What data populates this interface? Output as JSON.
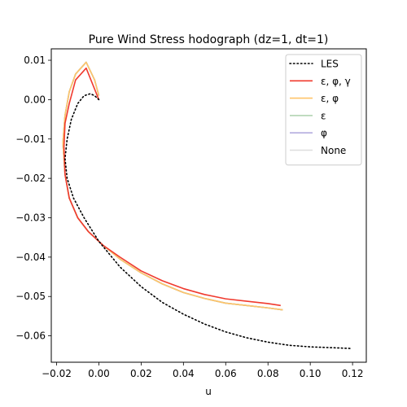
{
  "chart_data": {
    "type": "line",
    "title": "Pure Wind Stress hodograph (dz=1, dt=1)",
    "xlabel": "u",
    "ylabel": "",
    "xlim": [
      -0.0225,
      0.1265
    ],
    "ylim": [
      -0.0667,
      0.0129
    ],
    "xticks": [
      -0.02,
      0.0,
      0.02,
      0.04,
      0.06,
      0.08,
      0.1,
      0.12
    ],
    "xtick_labels": [
      "−0.02",
      "0.00",
      "0.02",
      "0.04",
      "0.06",
      "0.08",
      "0.10",
      "0.12"
    ],
    "yticks": [
      0.01,
      0.0,
      -0.01,
      -0.02,
      -0.03,
      -0.04,
      -0.05,
      -0.06
    ],
    "ytick_labels": [
      "0.01",
      "0.00",
      "−0.01",
      "−0.02",
      "−0.03",
      "−0.04",
      "−0.05",
      "−0.06"
    ],
    "grid": false,
    "legend_position": "top-right",
    "series": [
      {
        "name": "LES",
        "color": "#000000",
        "dash": "dotted",
        "x": [
          0.0,
          -0.002,
          -0.004,
          -0.007,
          -0.01,
          -0.013,
          -0.015,
          -0.016,
          -0.015,
          -0.012,
          -0.007,
          0.0,
          0.01,
          0.02,
          0.03,
          0.04,
          0.05,
          0.06,
          0.07,
          0.08,
          0.09,
          0.1,
          0.11,
          0.119
        ],
        "y": [
          0.0,
          0.001,
          0.0015,
          0.001,
          -0.001,
          -0.005,
          -0.01,
          -0.015,
          -0.02,
          -0.025,
          -0.03,
          -0.036,
          -0.0425,
          -0.0475,
          -0.0515,
          -0.0545,
          -0.057,
          -0.059,
          -0.0605,
          -0.0616,
          -0.0624,
          -0.0628,
          -0.063,
          -0.0632
        ]
      },
      {
        "name": "ε, φ, γ",
        "color": "#f03a2e",
        "dash": "solid",
        "x": [
          0.0,
          -0.003,
          -0.006,
          -0.011,
          -0.014,
          -0.016,
          -0.0165,
          -0.016,
          -0.014,
          -0.01,
          -0.005,
          0.002,
          0.01,
          0.02,
          0.03,
          0.04,
          0.05,
          0.06,
          0.07,
          0.08,
          0.086
        ],
        "y": [
          0.0,
          0.004,
          0.008,
          0.005,
          -0.001,
          -0.006,
          -0.012,
          -0.019,
          -0.025,
          -0.03,
          -0.0335,
          -0.037,
          -0.04,
          -0.0435,
          -0.046,
          -0.048,
          -0.0495,
          -0.0506,
          -0.0512,
          -0.0518,
          -0.0523
        ]
      },
      {
        "name": "ε, φ",
        "color": "#ffc469",
        "dash": "solid",
        "x": [
          0.0,
          -0.002,
          -0.006,
          -0.011,
          -0.014,
          -0.016,
          -0.017,
          -0.016,
          -0.014,
          -0.01,
          -0.005,
          0.002,
          0.01,
          0.02,
          0.03,
          0.04,
          0.05,
          0.06,
          0.07,
          0.08,
          0.087
        ],
        "y": [
          0.001,
          0.005,
          0.0095,
          0.0065,
          0.002,
          -0.004,
          -0.011,
          -0.019,
          -0.025,
          -0.03,
          -0.0335,
          -0.037,
          -0.0405,
          -0.044,
          -0.0468,
          -0.049,
          -0.0505,
          -0.0517,
          -0.0523,
          -0.0529,
          -0.0534
        ]
      },
      {
        "name": "ε",
        "color": "#b2d4b2",
        "dash": "solid",
        "x": [
          0.0,
          -0.002,
          -0.006,
          -0.011,
          -0.014,
          -0.016,
          -0.017,
          -0.016,
          -0.014,
          -0.01,
          -0.005,
          0.002,
          0.01,
          0.02,
          0.03,
          0.04,
          0.05,
          0.06,
          0.07,
          0.08,
          0.087
        ],
        "y": [
          0.001,
          0.005,
          0.0095,
          0.0065,
          0.002,
          -0.004,
          -0.011,
          -0.019,
          -0.025,
          -0.03,
          -0.0335,
          -0.037,
          -0.0405,
          -0.044,
          -0.0468,
          -0.049,
          -0.0505,
          -0.0517,
          -0.0523,
          -0.0529,
          -0.0534
        ]
      },
      {
        "name": "φ",
        "color": "#b3acdf",
        "dash": "solid",
        "x": [
          0.0,
          -0.002,
          -0.006,
          -0.011,
          -0.014,
          -0.016,
          -0.017,
          -0.016,
          -0.014,
          -0.01,
          -0.005,
          0.002,
          0.01,
          0.02,
          0.03,
          0.04,
          0.05,
          0.06,
          0.07,
          0.08,
          0.087
        ],
        "y": [
          0.001,
          0.005,
          0.0095,
          0.0065,
          0.002,
          -0.004,
          -0.011,
          -0.019,
          -0.025,
          -0.03,
          -0.0335,
          -0.037,
          -0.0405,
          -0.044,
          -0.0468,
          -0.049,
          -0.0505,
          -0.0517,
          -0.0523,
          -0.0529,
          -0.0534
        ]
      },
      {
        "name": "None",
        "color": "#a0a0a0",
        "legend_color": "#dedede",
        "dash": "solid",
        "x": [
          0.0,
          -0.002,
          -0.006,
          -0.011,
          -0.014,
          -0.016,
          -0.017,
          -0.016,
          -0.014,
          -0.01,
          -0.005,
          0.002,
          0.01,
          0.02,
          0.03,
          0.04,
          0.05,
          0.06,
          0.07,
          0.08,
          0.087
        ],
        "y": [
          0.001,
          0.005,
          0.0095,
          0.0065,
          0.002,
          -0.004,
          -0.011,
          -0.019,
          -0.025,
          -0.03,
          -0.0335,
          -0.037,
          -0.0405,
          -0.044,
          -0.0468,
          -0.049,
          -0.0505,
          -0.0517,
          -0.0523,
          -0.0529,
          -0.0534
        ]
      }
    ]
  }
}
